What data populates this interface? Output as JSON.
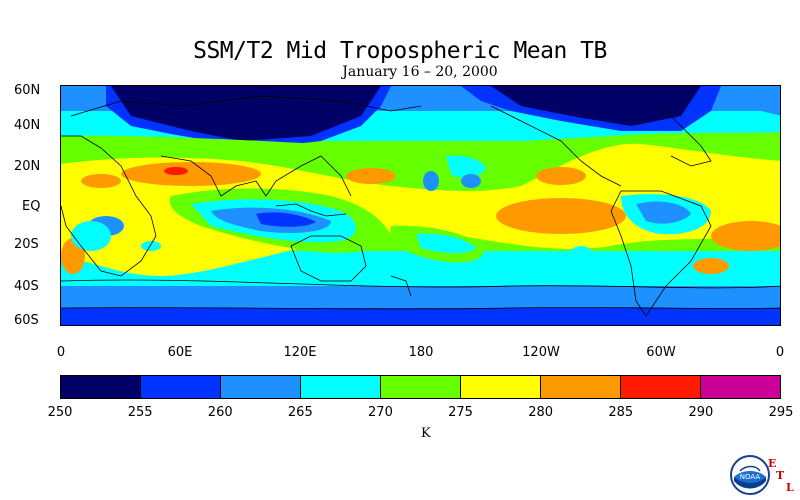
{
  "title": "SSM/T2 Mid Tropospheric Mean TB",
  "subtitle": "January 16 – 20, 2000",
  "lat_labels": [
    "60N",
    "40N",
    "20N",
    "EQ",
    "20S",
    "40S",
    "60S"
  ],
  "lon_labels": [
    "0",
    "60E",
    "120E",
    "180",
    "120W",
    "60W",
    "0"
  ],
  "colorbar": {
    "levels": [
      "250",
      "255",
      "260",
      "265",
      "270",
      "275",
      "280",
      "285",
      "290",
      "295"
    ],
    "colors": [
      "#000066",
      "#0033ff",
      "#1e90ff",
      "#00ffff",
      "#66ff00",
      "#ffff00",
      "#ff9900",
      "#ff1a00",
      "#cc0099"
    ],
    "unit": "K"
  },
  "logo": {
    "badge_text": "NOAA",
    "side_letters": [
      "E",
      "T",
      "L"
    ]
  }
}
